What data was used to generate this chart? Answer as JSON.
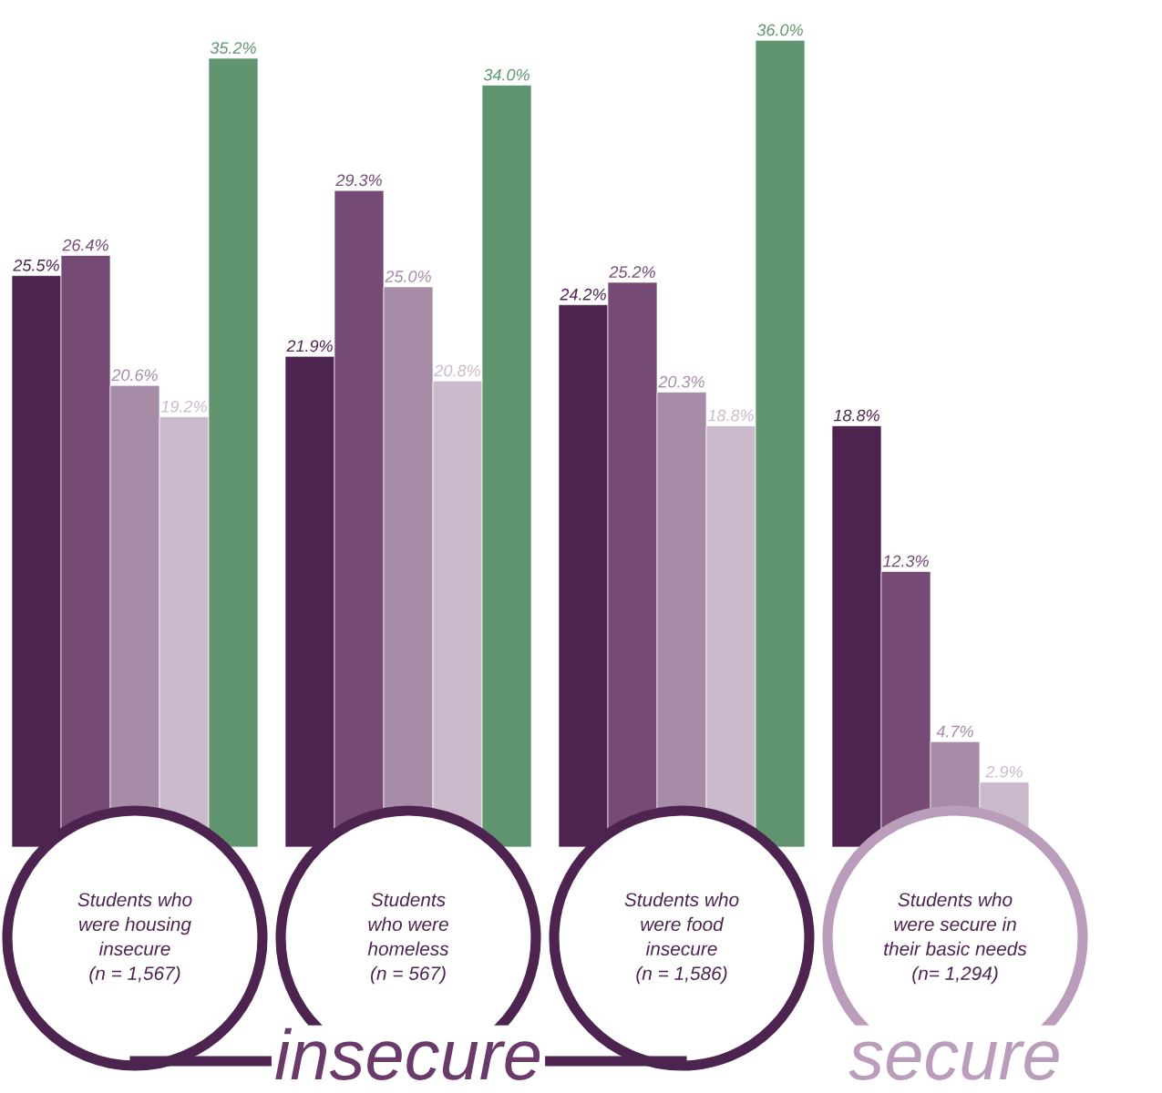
{
  "chart_data": {
    "type": "bar",
    "categories": [
      "Students who\nwere housing\ninsecure\n(n = 1,567)",
      "Students\nwho were\nhomeless\n(n = 567)",
      "Students who\nwere food\ninsecure\n(n = 1,586)",
      "Students who\nwere secure in\ntheir basic needs\n(n= 1,294)"
    ],
    "series": [
      {
        "color": "#4d2450",
        "values": [
          25.5,
          21.9,
          24.2,
          18.8
        ],
        "value_labels": [
          "25.5%",
          "21.9%",
          "24.2%",
          "18.8%"
        ]
      },
      {
        "color": "#754a75",
        "values": [
          26.4,
          29.3,
          25.2,
          12.3
        ],
        "value_labels": [
          "26.4%",
          "29.3%",
          "25.2%",
          "12.3%"
        ]
      },
      {
        "color": "#a78ca8",
        "values": [
          20.6,
          25.0,
          20.3,
          4.7
        ],
        "value_labels": [
          "20.6%",
          "25.0%",
          "20.3%",
          "4.7%"
        ]
      },
      {
        "color": "#cbbacb",
        "values": [
          19.2,
          20.8,
          18.8,
          2.9
        ],
        "value_labels": [
          "19.2%",
          "20.8%",
          "18.8%",
          "2.9%"
        ]
      },
      {
        "color": "#619570",
        "values": [
          35.2,
          34.0,
          36.0,
          null
        ],
        "value_labels": [
          "35.2%",
          "34.0%",
          "36.0%",
          null
        ]
      }
    ],
    "legend": false,
    "annotations": [
      "insecure",
      "secure"
    ]
  }
}
